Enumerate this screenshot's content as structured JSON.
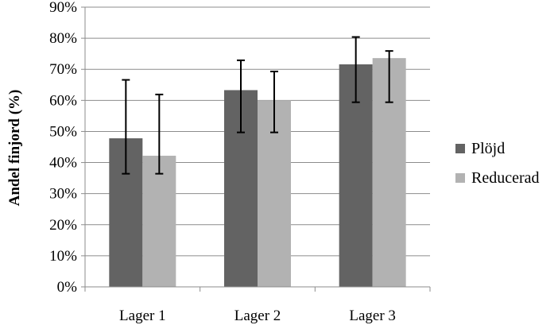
{
  "chart_data": {
    "type": "bar",
    "categories": [
      "Lager 1",
      "Lager 2",
      "Lager 3"
    ],
    "series": [
      {
        "name": "Plöjd",
        "color": "#636363",
        "values": [
          47.8,
          63.3,
          71.6
        ],
        "err_low": [
          36.4,
          49.7,
          59.4
        ],
        "err_high": [
          66.6,
          72.9,
          80.4
        ]
      },
      {
        "name": "Reducerad",
        "color": "#b2b2b2",
        "values": [
          42.2,
          60.0,
          73.6
        ],
        "err_low": [
          36.4,
          49.7,
          59.4
        ],
        "err_high": [
          61.9,
          69.3,
          75.9
        ]
      }
    ],
    "ylabel": "Andel finjord (%)",
    "xlabel": "",
    "ylim": [
      0,
      90
    ],
    "yticks": [
      "0%",
      "10%",
      "20%",
      "30%",
      "40%",
      "50%",
      "60%",
      "70%",
      "80%",
      "90%"
    ],
    "grid": true,
    "legend_position": "right"
  }
}
